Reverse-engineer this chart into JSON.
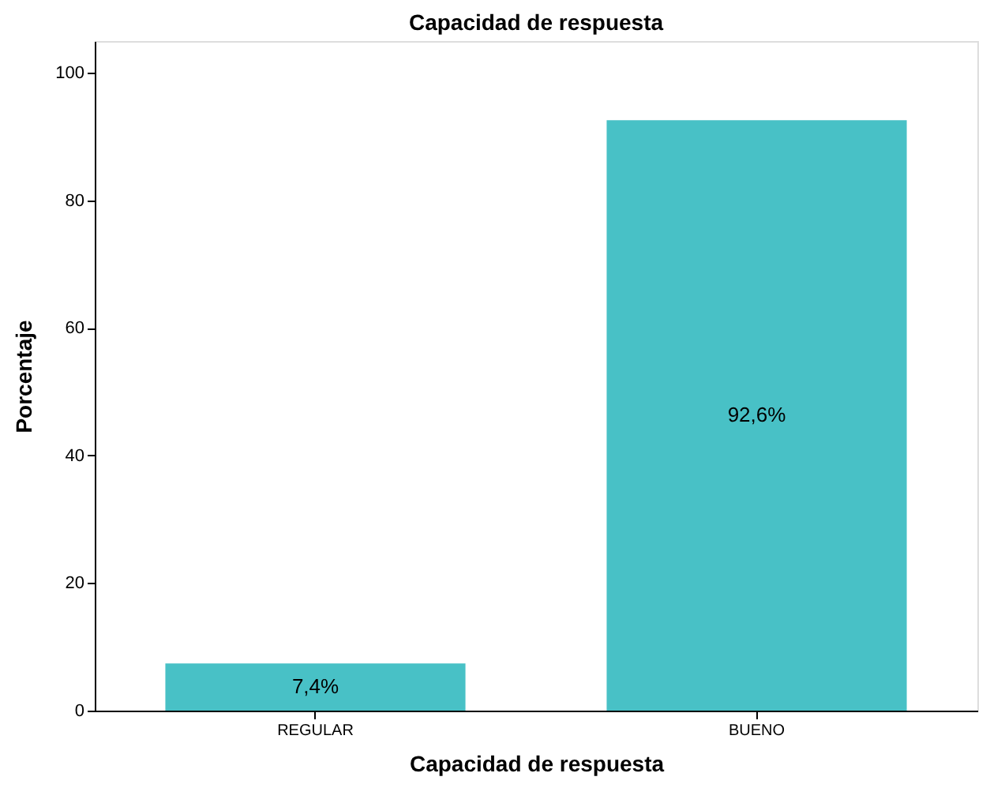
{
  "chart_data": {
    "type": "bar",
    "title": "Capacidad de respuesta",
    "xlabel": "Capacidad de respuesta",
    "ylabel": "Porcentaje",
    "categories": [
      "REGULAR",
      "BUENO"
    ],
    "values": [
      7.4,
      92.6
    ],
    "value_labels": [
      "7,4%",
      "92,6%"
    ],
    "color": "#48c1c6",
    "ylim": [
      0,
      105
    ],
    "yticks": [
      0,
      20,
      40,
      60,
      80,
      100
    ],
    "grid": false
  }
}
